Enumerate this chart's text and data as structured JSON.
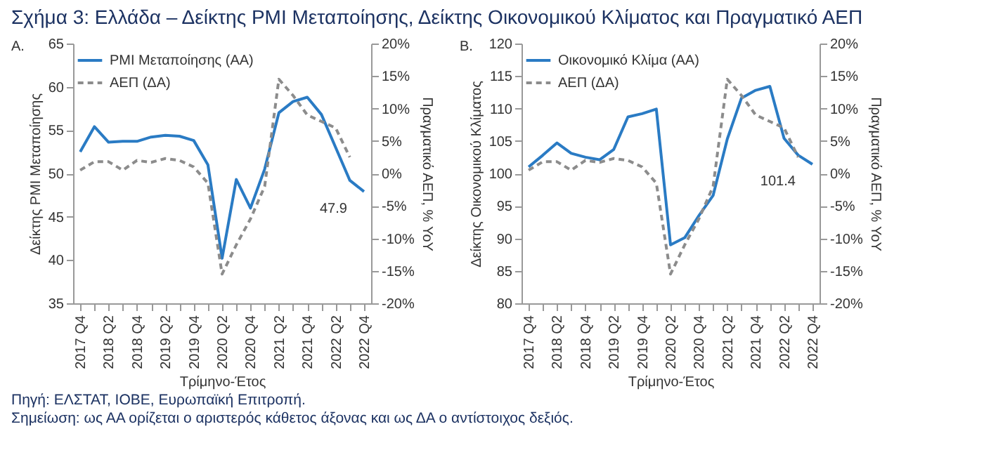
{
  "chart_data": [
    {
      "type": "line",
      "title": "A.",
      "xlabel": "Τρίμηνο-Έτος",
      "ylabel": "Δείκτης PMI Μεταποίησης",
      "y2label": "Πραγματικό ΑΕΠ, % YoY",
      "categories": [
        "2017 Q4",
        null,
        "2018 Q2",
        null,
        "2018 Q4",
        null,
        "2019 Q2",
        null,
        "2019 Q4",
        null,
        "2020 Q2",
        null,
        "2020 Q4",
        null,
        "2021 Q2",
        null,
        "2021 Q4",
        null,
        "2022 Q2",
        null,
        "2022 Q4"
      ],
      "series": [
        {
          "name": "PMI Μεταποίησης (ΑΑ)",
          "color": "#2a7bc4",
          "line_style": "solid",
          "values": [
            52.5,
            55.4,
            53.6,
            53.7,
            53.7,
            54.2,
            54.4,
            54.3,
            53.8,
            51.0,
            40.2,
            49.3,
            46.0,
            50.5,
            57.0,
            58.3,
            58.8,
            56.8,
            53.0,
            49.2,
            47.9
          ]
        },
        {
          "name": "ΑΕΠ (ΔΑ)",
          "color": "#8c8c8c",
          "line_style": "dashed",
          "axis": "y2",
          "values": [
            0.5,
            1.8,
            1.8,
            0.5,
            2.0,
            1.7,
            2.3,
            2.0,
            1.0,
            -1.5,
            -15.5,
            -11.0,
            -7.0,
            -2.0,
            14.5,
            12.0,
            9.0,
            8.0,
            7.0,
            2.5,
            null
          ]
        }
      ],
      "ylim": [
        35,
        65
      ],
      "yticks": [
        35,
        40,
        45,
        50,
        55,
        60,
        65
      ],
      "y2lim": [
        -20,
        20
      ],
      "y2ticks": [
        {
          "value": -20,
          "label": "-20%"
        },
        {
          "value": -15,
          "label": "-15%"
        },
        {
          "value": -10,
          "label": "-10%"
        },
        {
          "value": -5,
          "label": "-5%"
        },
        {
          "value": 0,
          "label": "0%"
        },
        {
          "value": 5,
          "label": "5%"
        },
        {
          "value": 10,
          "label": "10%"
        },
        {
          "value": 15,
          "label": "15%"
        },
        {
          "value": 20,
          "label": "20%"
        }
      ],
      "legend": "top left",
      "grid": false,
      "annotations": [
        "Σχήμα 3: Ελλάδα – Δείκτης PMI Μεταποίησης, Δείκτης Οικονομικού Κλίματος και Πραγματικό ΑΕΠ",
        {
          "text": "47.9",
          "x": "2022 Q4",
          "y": 47.9
        }
      ]
    },
    {
      "type": "line",
      "title": "Β.",
      "xlabel": "Τρίμηνο-Έτος",
      "ylabel": "Δείκτης Οικονομικού Κλίματος",
      "y2label": "Πραγματικό ΑΕΠ, % YoY",
      "categories": [
        "2017 Q4",
        null,
        "2018 Q2",
        null,
        "2018 Q4",
        null,
        "2019 Q2",
        null,
        "2019 Q4",
        null,
        "2020 Q2",
        null,
        "2020 Q4",
        null,
        "2021 Q2",
        null,
        "2021 Q4",
        null,
        "2022 Q2",
        null,
        "2022 Q4"
      ],
      "series": [
        {
          "name": "Οικονομικό Κλίμα (ΑΑ)",
          "color": "#2a7bc4",
          "line_style": "solid",
          "values": [
            101.0,
            102.8,
            104.7,
            103.1,
            102.5,
            102.1,
            103.7,
            108.7,
            109.2,
            109.9,
            89.0,
            90.1,
            93.5,
            96.6,
            105.3,
            111.6,
            112.8,
            113.4,
            105.4,
            102.8,
            101.4
          ]
        },
        {
          "name": "ΑΕΠ (ΔΑ)",
          "color": "#8c8c8c",
          "line_style": "dashed",
          "axis": "y2",
          "values": [
            0.5,
            1.8,
            1.8,
            0.5,
            2.0,
            1.7,
            2.3,
            2.0,
            1.0,
            -1.5,
            -15.5,
            -11.0,
            -7.0,
            -2.0,
            14.5,
            12.0,
            9.0,
            8.0,
            7.0,
            2.5,
            null
          ]
        }
      ],
      "ylim": [
        80,
        120
      ],
      "yticks": [
        80,
        85,
        90,
        95,
        100,
        105,
        110,
        115,
        120
      ],
      "y2lim": [
        -20,
        20
      ],
      "y2ticks": [
        {
          "value": -20,
          "label": "-20%"
        },
        {
          "value": -15,
          "label": "-15%"
        },
        {
          "value": -10,
          "label": "-10%"
        },
        {
          "value": -5,
          "label": "-5%"
        },
        {
          "value": 0,
          "label": "0%"
        },
        {
          "value": 5,
          "label": "5%"
        },
        {
          "value": 10,
          "label": "10%"
        },
        {
          "value": 15,
          "label": "15%"
        },
        {
          "value": 20,
          "label": "20%"
        }
      ],
      "legend": "top left",
      "grid": false,
      "annotations": [
        {
          "text": "101.4",
          "x": "2022 Q4",
          "y": 101.4
        },
        "Πηγή: ΕΛΣΤΑΤ, IOBE, Ευρωπαϊκή Επιτροπή.",
        "Σημείωση: ως ΑΑ ορίζεται ο αριστερός κάθετος άξονας και ως ΔΑ ο αντίστοιχος δεξιός."
      ]
    }
  ]
}
